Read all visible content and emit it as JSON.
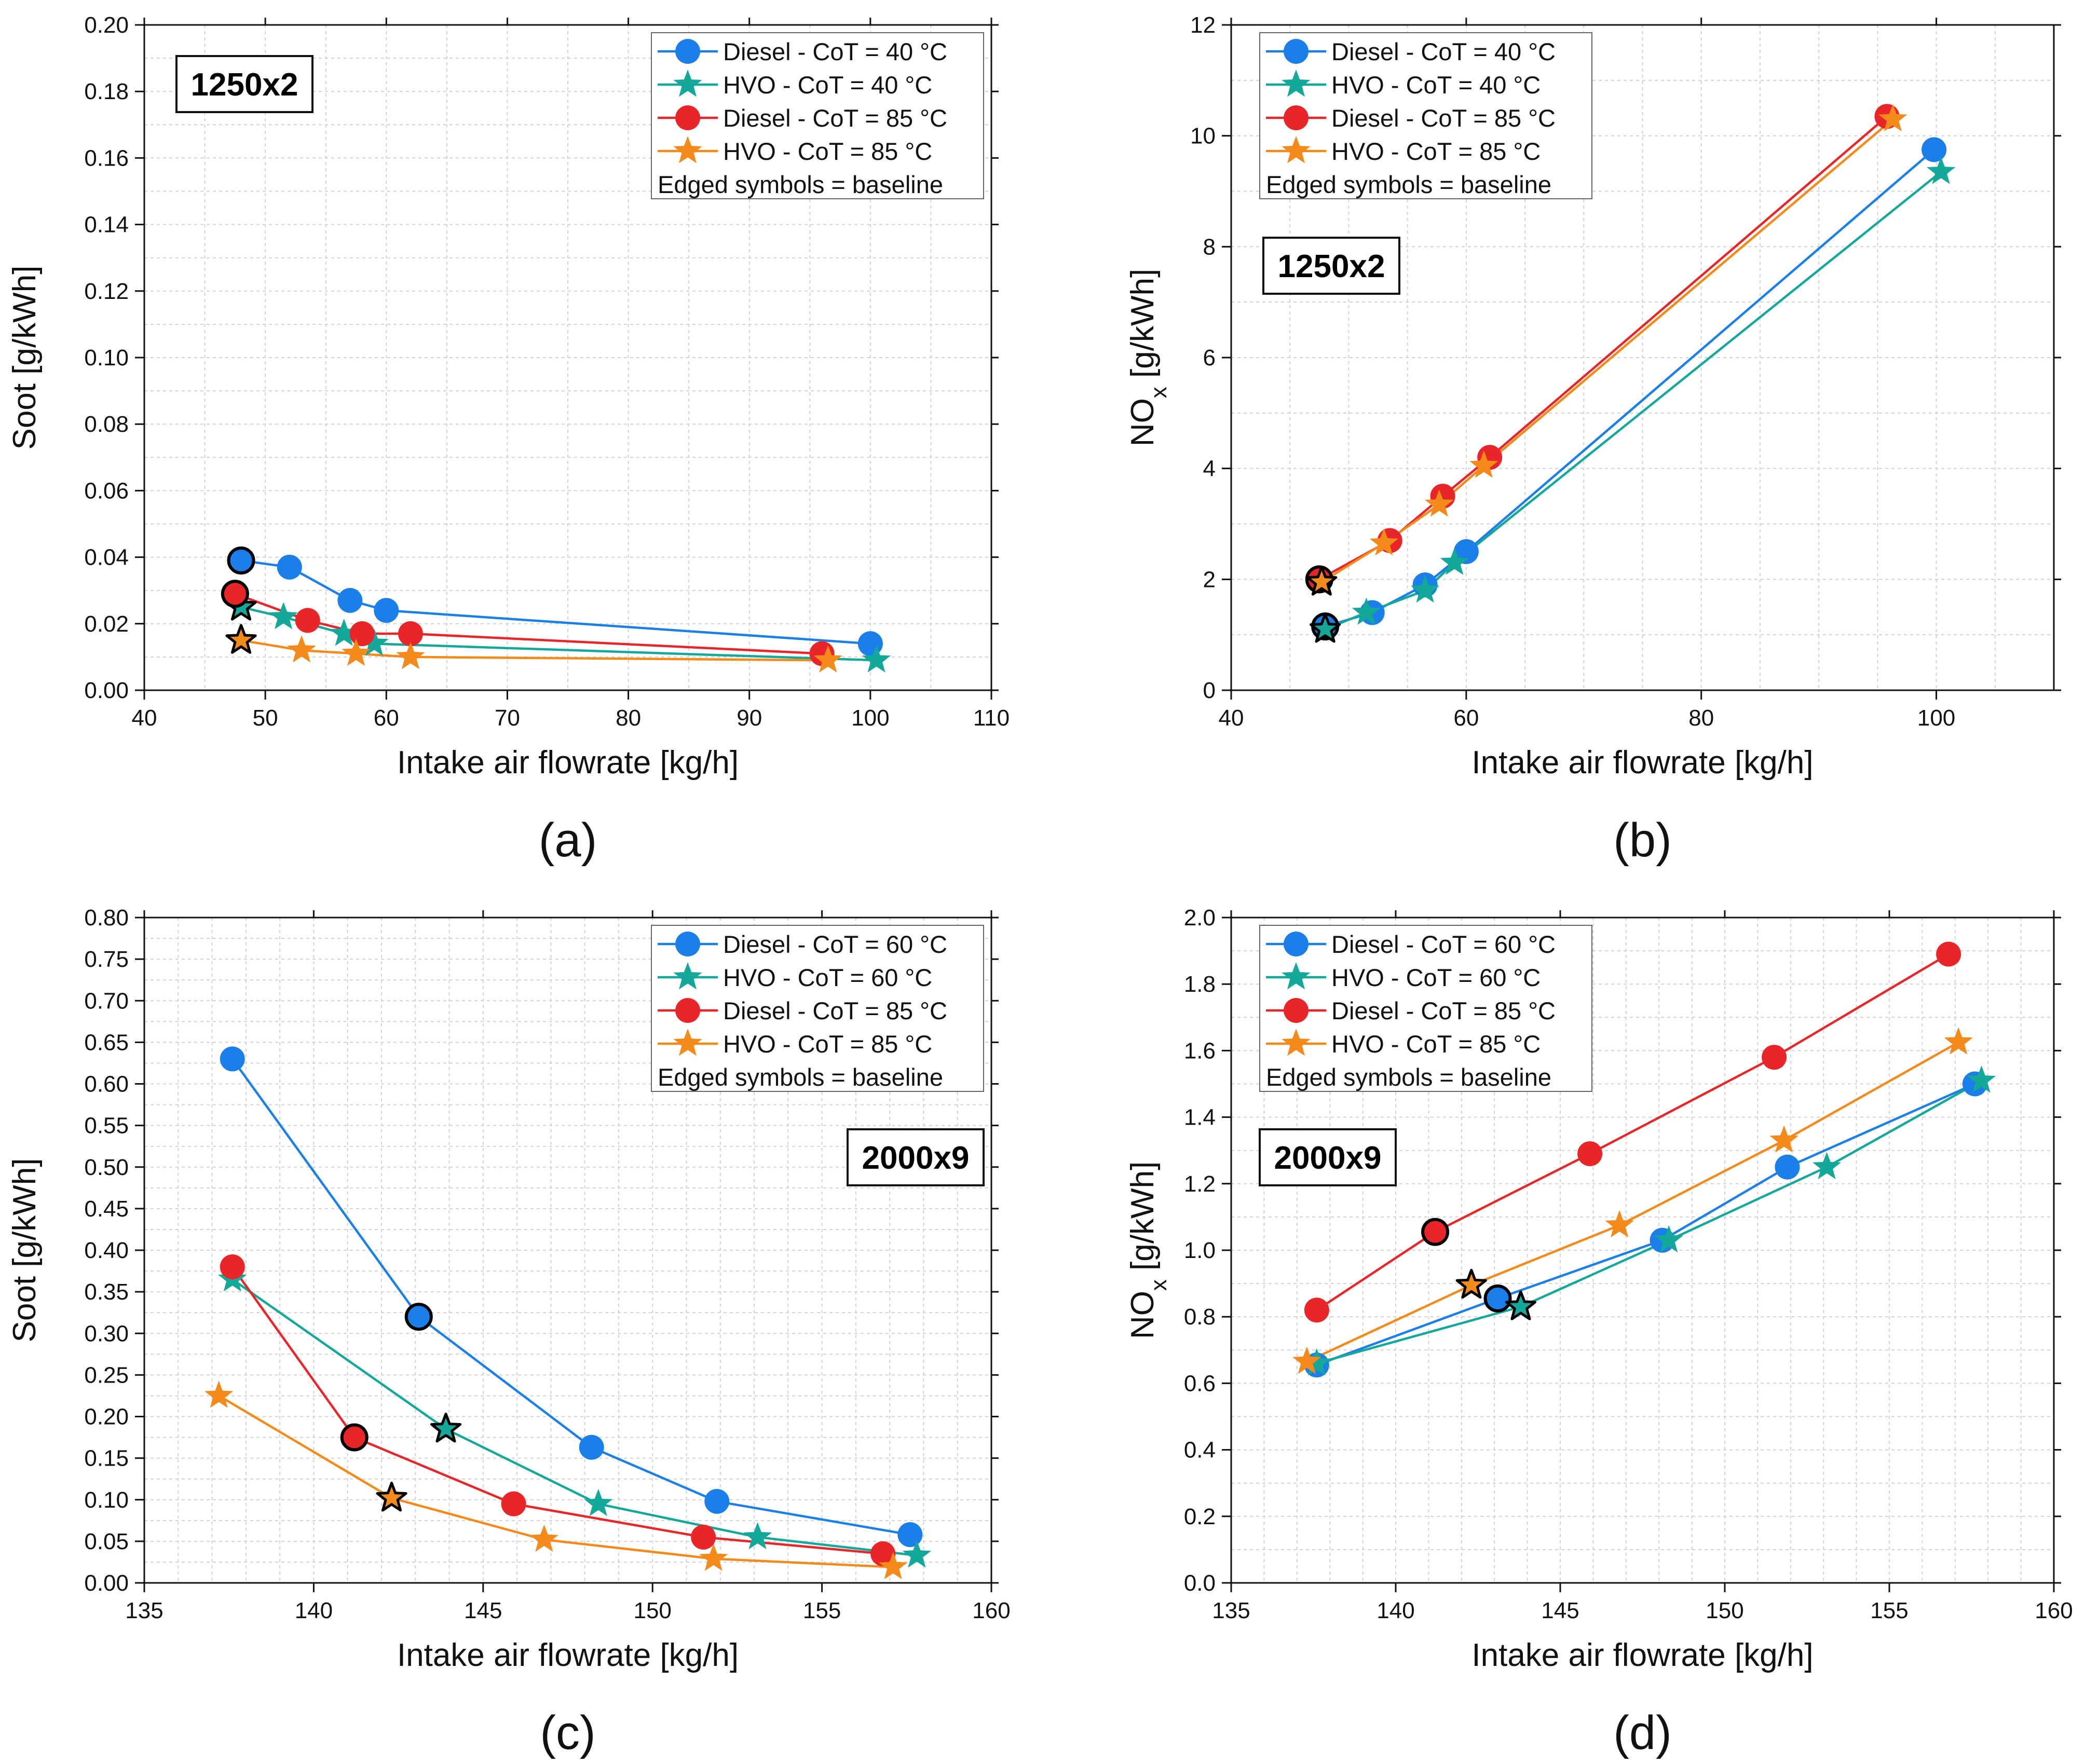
{
  "colors": {
    "diesel_40": "#1a7fe8",
    "hvo_40": "#14a89a",
    "diesel_85": "#e8262a",
    "hvo_85": "#f48a1a"
  },
  "chart_data": [
    {
      "type": "line",
      "label": "(a)",
      "config_label": "1250x2",
      "xlabel": "Intake air flowrate [kg/h]",
      "ylabel": "Soot [g/kWh]",
      "ylabel_sub": "",
      "ylabel_tail": "",
      "xlim": [
        40,
        110
      ],
      "xticks": [
        40,
        50,
        60,
        70,
        80,
        90,
        100,
        110
      ],
      "xminor": 5,
      "xdec": 0,
      "ylim": [
        0,
        0.2
      ],
      "yticks": [
        0,
        0.02,
        0.04,
        0.06,
        0.08,
        0.1,
        0.12,
        0.14,
        0.16,
        0.18,
        0.2
      ],
      "yminor": 0.01,
      "ydec": 2,
      "legend_pos": "top-right",
      "config_pos": "top-left",
      "legend_note": "Edged symbols = baseline",
      "series": [
        {
          "name": "Diesel - CoT = 40 °C",
          "marker": "circle",
          "color_key": "diesel_40",
          "baseline_index": 0,
          "x": [
            48,
            52,
            57,
            60,
            100
          ],
          "y": [
            0.039,
            0.037,
            0.027,
            0.024,
            0.014
          ]
        },
        {
          "name": "HVO - CoT = 40 °C",
          "marker": "star",
          "color_key": "hvo_40",
          "baseline_index": 0,
          "x": [
            48,
            51.5,
            56.5,
            59,
            100.5
          ],
          "y": [
            0.025,
            0.022,
            0.017,
            0.014,
            0.009
          ]
        },
        {
          "name": "Diesel - CoT = 85 °C",
          "marker": "circle",
          "color_key": "diesel_85",
          "baseline_index": 0,
          "x": [
            47.5,
            53.5,
            58,
            62,
            96
          ],
          "y": [
            0.029,
            0.021,
            0.017,
            0.017,
            0.011
          ]
        },
        {
          "name": "HVO - CoT = 85 °C",
          "marker": "star",
          "color_key": "hvo_85",
          "baseline_index": 0,
          "x": [
            48,
            53,
            57.5,
            62,
            96.5
          ],
          "y": [
            0.015,
            0.012,
            0.011,
            0.01,
            0.009
          ]
        }
      ]
    },
    {
      "type": "line",
      "label": "(b)",
      "config_label": "1250x2",
      "xlabel": "Intake air flowrate [kg/h]",
      "ylabel": "NO",
      "ylabel_sub": "x",
      "ylabel_tail": " [g/kWh]",
      "xlim": [
        40,
        110
      ],
      "xticks": [
        40,
        60,
        80,
        100
      ],
      "xminor": 5,
      "xdec": 0,
      "ylim": [
        0,
        12
      ],
      "yticks": [
        0,
        2,
        4,
        6,
        8,
        10,
        12
      ],
      "yminor": 1,
      "ydec": 0,
      "legend_pos": "top-left",
      "config_pos": "upper-left",
      "legend_note": "Edged symbols = baseline",
      "series": [
        {
          "name": "Diesel - CoT = 40 °C",
          "marker": "circle",
          "color_key": "diesel_40",
          "baseline_index": 0,
          "x": [
            48,
            52,
            56.5,
            60,
            99.8
          ],
          "y": [
            1.15,
            1.4,
            1.9,
            2.5,
            9.75
          ]
        },
        {
          "name": "HVO - CoT = 40 °C",
          "marker": "star",
          "color_key": "hvo_40",
          "baseline_index": 0,
          "x": [
            48,
            51.5,
            56.5,
            59,
            100.4
          ],
          "y": [
            1.1,
            1.4,
            1.8,
            2.3,
            9.35
          ]
        },
        {
          "name": "Diesel - CoT = 85 °C",
          "marker": "circle",
          "color_key": "diesel_85",
          "baseline_index": 0,
          "x": [
            47.5,
            53.5,
            58,
            62,
            95.8
          ],
          "y": [
            2.0,
            2.7,
            3.5,
            4.2,
            10.35
          ]
        },
        {
          "name": "HVO - CoT = 85 °C",
          "marker": "star",
          "color_key": "hvo_85",
          "baseline_index": 0,
          "x": [
            47.7,
            53,
            57.7,
            61.5,
            96.3
          ],
          "y": [
            1.95,
            2.65,
            3.35,
            4.05,
            10.3
          ]
        }
      ]
    },
    {
      "type": "line",
      "label": "(c)",
      "config_label": "2000x9",
      "xlabel": "Intake air flowrate [kg/h]",
      "ylabel": "Soot [g/kWh]",
      "ylabel_sub": "",
      "ylabel_tail": "",
      "xlim": [
        135,
        160
      ],
      "xticks": [
        135,
        140,
        145,
        150,
        155,
        160
      ],
      "xminor": 1,
      "xdec": 0,
      "ylim": [
        0,
        0.8
      ],
      "yticks": [
        0,
        0.05,
        0.1,
        0.15,
        0.2,
        0.25,
        0.3,
        0.35,
        0.4,
        0.45,
        0.5,
        0.55,
        0.6,
        0.65,
        0.7,
        0.75,
        0.8
      ],
      "yminor": 0.025,
      "ydec": 2,
      "legend_pos": "top-right",
      "config_pos": "right",
      "legend_note": "Edged symbols = baseline",
      "series": [
        {
          "name": "Diesel - CoT = 60 °C",
          "marker": "circle",
          "color_key": "diesel_40",
          "baseline_index": 1,
          "x": [
            137.6,
            143.1,
            148.2,
            151.9,
            157.6
          ],
          "y": [
            0.63,
            0.32,
            0.163,
            0.098,
            0.058
          ]
        },
        {
          "name": "HVO - CoT = 60 °C",
          "marker": "star",
          "color_key": "hvo_40",
          "baseline_index": 1,
          "x": [
            137.6,
            143.9,
            148.4,
            153.1,
            157.8
          ],
          "y": [
            0.365,
            0.185,
            0.095,
            0.055,
            0.033
          ]
        },
        {
          "name": "Diesel - CoT = 85 °C",
          "marker": "circle",
          "color_key": "diesel_85",
          "baseline_index": 1,
          "x": [
            137.6,
            141.2,
            145.9,
            151.5,
            156.8
          ],
          "y": [
            0.38,
            0.175,
            0.095,
            0.055,
            0.035
          ]
        },
        {
          "name": "HVO - CoT = 85 °C",
          "marker": "star",
          "color_key": "hvo_85",
          "baseline_index": 1,
          "x": [
            137.2,
            142.3,
            146.8,
            151.8,
            157.1
          ],
          "y": [
            0.225,
            0.102,
            0.052,
            0.029,
            0.019
          ]
        }
      ]
    },
    {
      "type": "line",
      "label": "(d)",
      "config_label": "2000x9",
      "xlabel": "Intake air flowrate [kg/h]",
      "ylabel": "NO",
      "ylabel_sub": "x",
      "ylabel_tail": " [g/kWh]",
      "xlim": [
        135,
        160
      ],
      "xticks": [
        135,
        140,
        145,
        150,
        155,
        160
      ],
      "xminor": 1,
      "xdec": 0,
      "ylim": [
        0,
        2.0
      ],
      "yticks": [
        0,
        0.2,
        0.4,
        0.6,
        0.8,
        1.0,
        1.2,
        1.4,
        1.6,
        1.8,
        2.0
      ],
      "yminor": 0.1,
      "ydec": 1,
      "legend_pos": "top-left",
      "config_pos": "left",
      "legend_note": "Edged symbols = baseline",
      "series": [
        {
          "name": "Diesel - CoT = 60 °C",
          "marker": "circle",
          "color_key": "diesel_40",
          "baseline_index": 1,
          "x": [
            137.6,
            143.1,
            148.1,
            151.9,
            157.6
          ],
          "y": [
            0.655,
            0.855,
            1.03,
            1.25,
            1.5
          ]
        },
        {
          "name": "HVO - CoT = 60 °C",
          "marker": "star",
          "color_key": "hvo_40",
          "baseline_index": 1,
          "x": [
            137.6,
            143.8,
            148.3,
            153.1,
            157.8
          ],
          "y": [
            0.66,
            0.83,
            1.03,
            1.25,
            1.51
          ]
        },
        {
          "name": "Diesel - CoT = 85 °C",
          "marker": "circle",
          "color_key": "diesel_85",
          "baseline_index": 1,
          "x": [
            137.6,
            141.2,
            145.9,
            151.5,
            156.8
          ],
          "y": [
            0.82,
            1.055,
            1.29,
            1.58,
            1.89
          ]
        },
        {
          "name": "HVO - CoT = 85 °C",
          "marker": "star",
          "color_key": "hvo_85",
          "baseline_index": 1,
          "x": [
            137.3,
            142.3,
            146.8,
            151.8,
            157.1
          ],
          "y": [
            0.665,
            0.895,
            1.075,
            1.33,
            1.625
          ]
        }
      ]
    }
  ]
}
